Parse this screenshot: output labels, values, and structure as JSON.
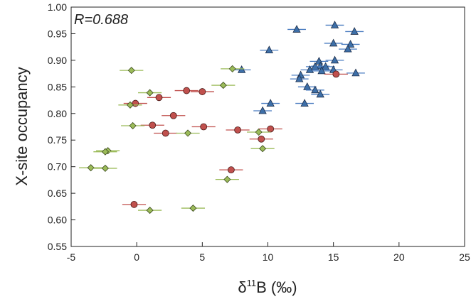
{
  "chart_data": {
    "type": "scatter",
    "xlabel": "δ11B (‰)",
    "xlabel_main": "δ",
    "xlabel_sup": "11",
    "xlabel_rest": "B (‰)",
    "ylabel": "X-site occupancy",
    "annotation": "R=0.688",
    "xlim": [
      -5,
      25
    ],
    "ylim": [
      0.55,
      1.0
    ],
    "xticks": [
      -5,
      0,
      5,
      10,
      15,
      20,
      25
    ],
    "yticks": [
      0.55,
      0.6,
      0.65,
      0.7,
      0.75,
      0.8,
      0.85,
      0.9,
      0.95,
      1.0
    ],
    "ytick_labels": [
      "0.55",
      "0.60",
      "0.65",
      "0.70",
      "0.75",
      "0.80",
      "0.85",
      "0.90",
      "0.95",
      "1.00"
    ],
    "grid": false,
    "legend": null,
    "series": [
      {
        "marker": "triangle",
        "color": "#3d6fa8",
        "errcolor": "#4a7cc0",
        "xerr": 0.7,
        "points": [
          [
            12.2,
            0.958
          ],
          [
            15.1,
            0.966
          ],
          [
            16.6,
            0.954
          ],
          [
            10.1,
            0.919
          ],
          [
            15.0,
            0.932
          ],
          [
            16.3,
            0.93
          ],
          [
            16.1,
            0.921
          ],
          [
            13.9,
            0.898
          ],
          [
            14.0,
            0.889
          ],
          [
            13.6,
            0.888
          ],
          [
            14.4,
            0.888
          ],
          [
            13.2,
            0.882
          ],
          [
            14.1,
            0.88
          ],
          [
            12.5,
            0.872
          ],
          [
            15.0,
            0.882
          ],
          [
            16.7,
            0.876
          ],
          [
            8.0,
            0.882
          ],
          [
            12.4,
            0.865
          ],
          [
            15.1,
            0.9
          ],
          [
            13.0,
            0.85
          ],
          [
            13.6,
            0.844
          ],
          [
            14.0,
            0.836
          ],
          [
            10.2,
            0.819
          ],
          [
            12.8,
            0.819
          ],
          [
            9.6,
            0.805
          ]
        ]
      },
      {
        "marker": "circle",
        "color": "#c0504d",
        "errcolor": "#c0504d",
        "xerr": 0.9,
        "points": [
          [
            15.2,
            0.874
          ],
          [
            3.8,
            0.843
          ],
          [
            5.0,
            0.841
          ],
          [
            1.7,
            0.83
          ],
          [
            -0.1,
            0.819
          ],
          [
            2.8,
            0.796
          ],
          [
            1.2,
            0.778
          ],
          [
            5.1,
            0.775
          ],
          [
            2.2,
            0.763
          ],
          [
            7.7,
            0.769
          ],
          [
            10.2,
            0.771
          ],
          [
            9.5,
            0.752
          ],
          [
            7.2,
            0.694
          ],
          [
            -0.2,
            0.629
          ]
        ]
      },
      {
        "marker": "diamond",
        "color": "#9bbb59",
        "errcolor": "#9bbb59",
        "xerr": 0.9,
        "points": [
          [
            -0.4,
            0.881
          ],
          [
            7.3,
            0.884
          ],
          [
            1.0,
            0.839
          ],
          [
            6.6,
            0.853
          ],
          [
            -0.5,
            0.816
          ],
          [
            -0.3,
            0.777
          ],
          [
            3.9,
            0.763
          ],
          [
            9.3,
            0.765
          ],
          [
            9.6,
            0.734
          ],
          [
            -2.2,
            0.73
          ],
          [
            -2.4,
            0.728
          ],
          [
            -3.5,
            0.698
          ],
          [
            -2.4,
            0.697
          ],
          [
            6.9,
            0.676
          ],
          [
            1.0,
            0.618
          ],
          [
            4.3,
            0.622
          ]
        ]
      }
    ]
  }
}
